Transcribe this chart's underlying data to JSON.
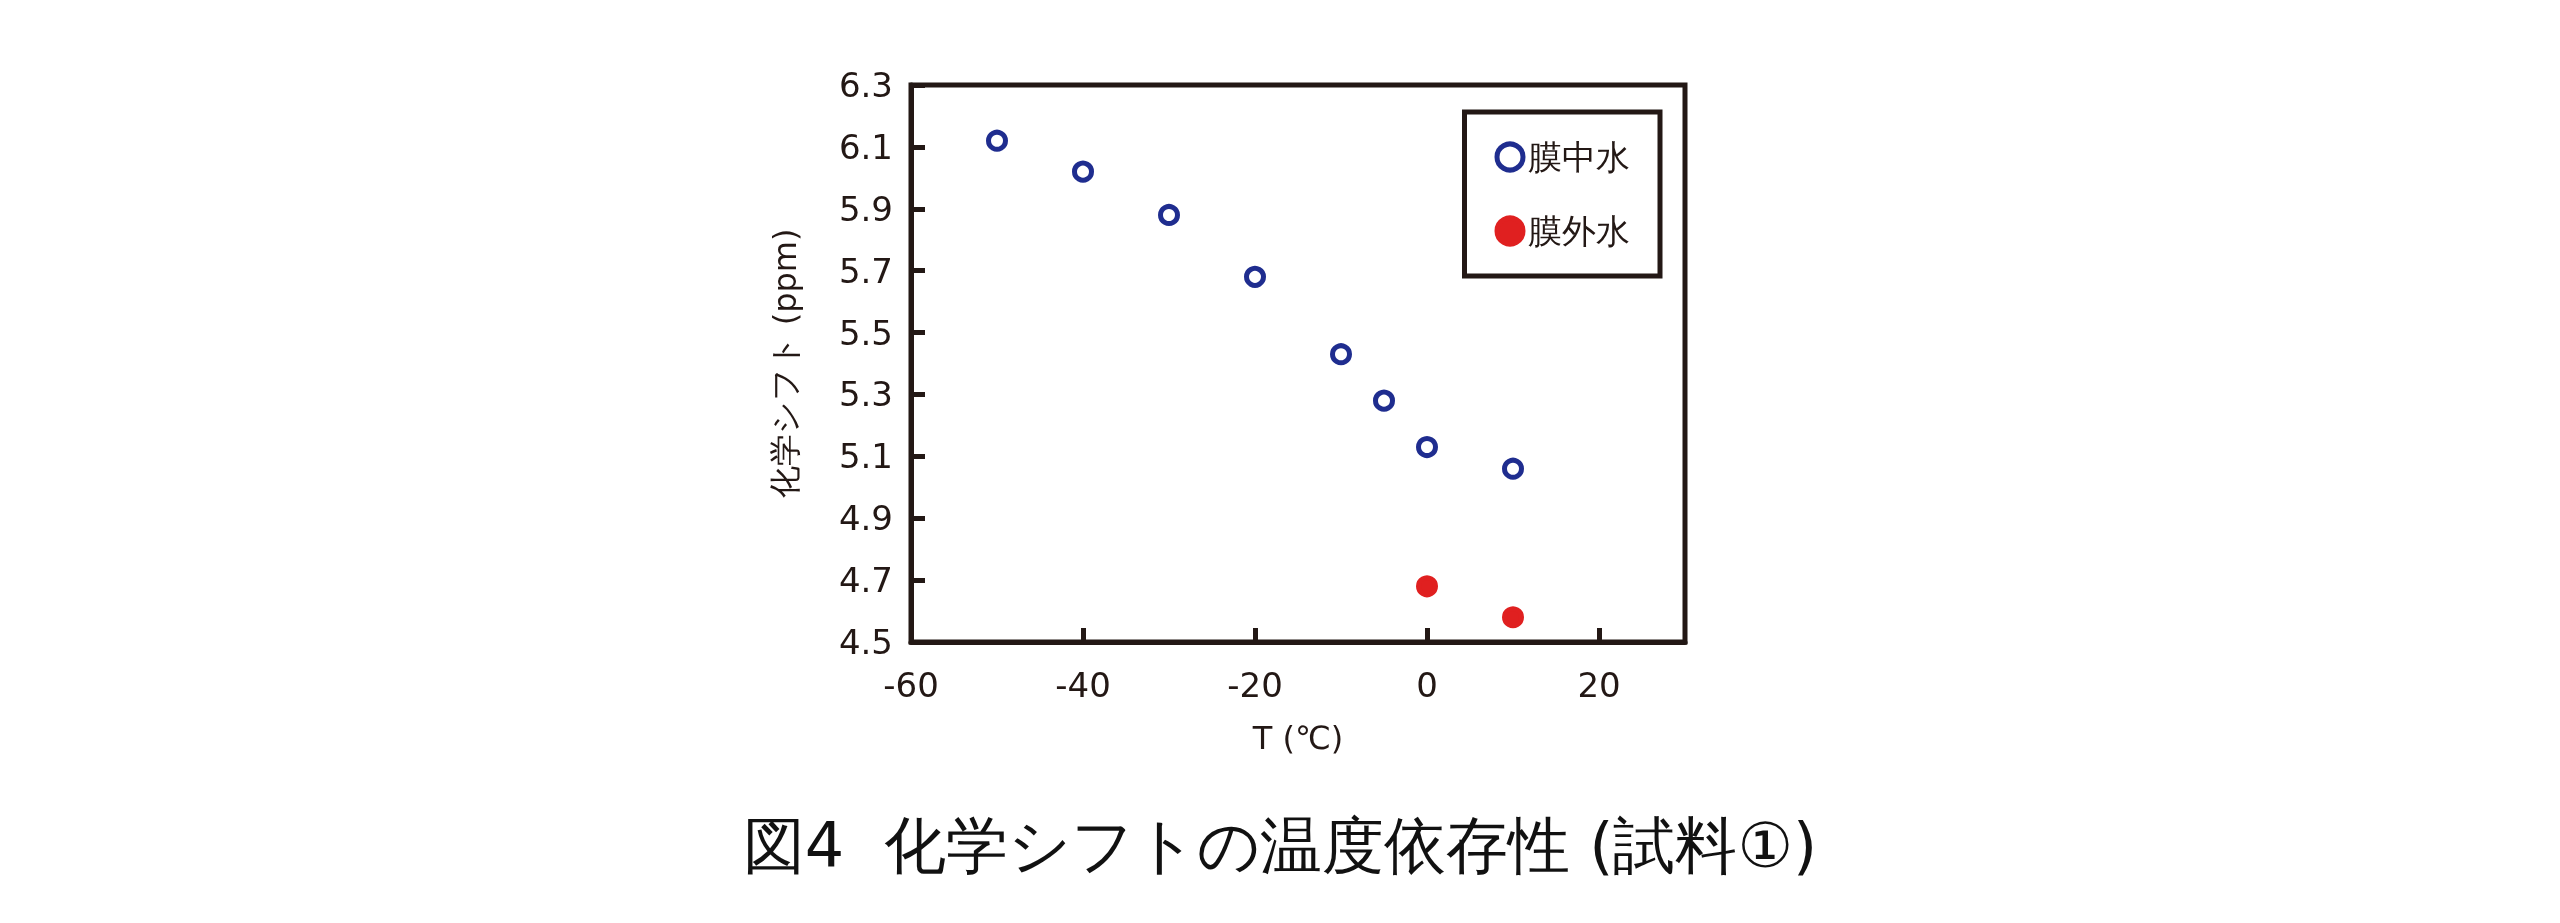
{
  "chart_data": {
    "type": "scatter",
    "title": "図4  化学シフトの温度依存性 (試料①)",
    "xlabel": "T (℃)",
    "ylabel": "化学シフト (ppm)",
    "series": [
      {
        "name": "膜中水",
        "color": "#1f2d8f",
        "marker": "open circle",
        "x": [
          -50,
          -40,
          -30,
          -20,
          -10,
          -5,
          0,
          10
        ],
        "values": [
          6.12,
          6.02,
          5.88,
          5.68,
          5.43,
          5.28,
          5.13,
          5.06
        ]
      },
      {
        "name": "膜外水",
        "color": "#e02020",
        "marker": "circle",
        "x": [
          0,
          10
        ],
        "values": [
          4.68,
          4.58
        ]
      }
    ],
    "xlim": [
      -60,
      30
    ],
    "xticks": [
      -60,
      -40,
      -20,
      0,
      20
    ],
    "ylim": [
      4.5,
      6.3
    ],
    "yticks": [
      4.5,
      4.7,
      4.9,
      5.1,
      5.3,
      5.5,
      5.7,
      5.9,
      6.1,
      6.3
    ],
    "grid": false,
    "legend": "top right"
  }
}
